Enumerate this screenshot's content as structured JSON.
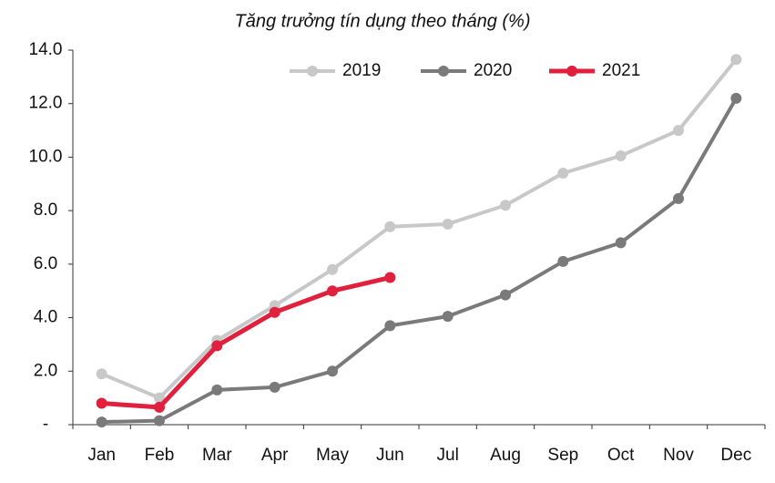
{
  "chart_data": {
    "type": "line",
    "title": "Tăng trưởng tín dụng theo tháng (%)",
    "categories": [
      "Jan",
      "Feb",
      "Mar",
      "Apr",
      "May",
      "Jun",
      "Jul",
      "Aug",
      "Sep",
      "Oct",
      "Nov",
      "Dec"
    ],
    "series": [
      {
        "name": "2019",
        "color": "#c8c8c8",
        "values": [
          1.9,
          1.0,
          3.15,
          4.45,
          5.8,
          7.4,
          7.5,
          8.2,
          9.4,
          10.05,
          11.0,
          13.65
        ]
      },
      {
        "name": "2020",
        "color": "#7a7a7a",
        "values": [
          0.1,
          0.15,
          1.3,
          1.4,
          2.0,
          3.7,
          4.05,
          4.85,
          6.1,
          6.8,
          8.45,
          12.2
        ]
      },
      {
        "name": "2021",
        "color": "#e0203c",
        "values": [
          0.8,
          0.65,
          2.95,
          4.2,
          5.0,
          5.5,
          null,
          null,
          null,
          null,
          null,
          null
        ]
      }
    ],
    "ylim": [
      0,
      14
    ],
    "yticks": [
      {
        "value": 0,
        "label": "-"
      },
      {
        "value": 2,
        "label": "2.0"
      },
      {
        "value": 4,
        "label": "4.0"
      },
      {
        "value": 6,
        "label": "6.0"
      },
      {
        "value": 8,
        "label": "8.0"
      },
      {
        "value": 10,
        "label": "10.0"
      },
      {
        "value": 12,
        "label": "12.0"
      },
      {
        "value": 14,
        "label": "14.0"
      }
    ],
    "grid": false,
    "legend": "top"
  }
}
